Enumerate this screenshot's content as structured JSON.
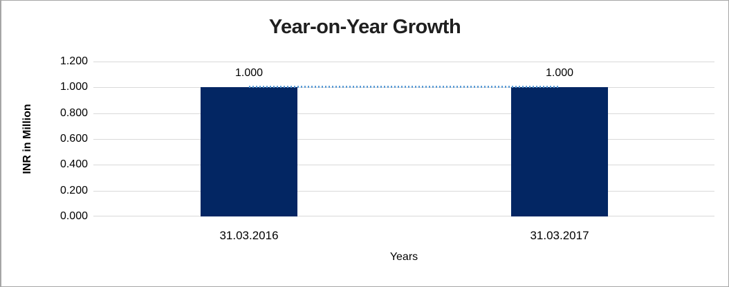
{
  "chart_data": {
    "type": "bar",
    "title": "Year-on-Year Growth",
    "xlabel": "Years",
    "ylabel": "INR in Million",
    "categories": [
      "31.03.2016",
      "31.03.2017"
    ],
    "series": [
      {
        "name": "INR in Million",
        "values": [
          1.0,
          1.0
        ]
      }
    ],
    "data_labels": [
      "1.000",
      "1.000"
    ],
    "y_tick_labels": [
      "1.200",
      "1.000",
      "0.800",
      "0.600",
      "0.400",
      "0.200",
      "0.000"
    ],
    "ylim": [
      0.0,
      1.2
    ],
    "grid": true,
    "legend": "none",
    "trendline": {
      "style": "dotted",
      "value": 1.0,
      "from_category": "31.03.2016",
      "to_category": "31.03.2017"
    },
    "colors": {
      "bar": "#032663",
      "gridline": "#D9D9D9",
      "trendline": "#5B9BD5",
      "title_text": "#1F1F1F",
      "axis_text": "#000000",
      "chart_border": "#A6A6A6",
      "background": "#FFFFFF"
    }
  }
}
